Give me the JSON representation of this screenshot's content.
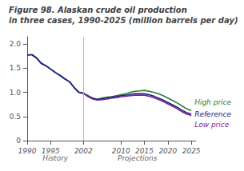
{
  "chart_data": {
    "type": "line",
    "title": "Figure 98. Alaskan crude oil production",
    "subtitle": "in three cases, 1990-2025 (million barrels per day)",
    "xlim": [
      1990,
      2026
    ],
    "xticks": [
      1990,
      1995,
      2002,
      2010,
      2015,
      2020,
      2025
    ],
    "ylim": [
      0,
      2.15
    ],
    "yticks": [
      0,
      0.5,
      {
        "value": 1.0,
        "label": "1.0"
      },
      1.5,
      {
        "value": 2.0,
        "label": "2.0"
      }
    ],
    "grid": false,
    "vlines": [
      2002
    ],
    "annotations": [
      {
        "text": "History",
        "x": 1996,
        "y": 0
      },
      {
        "text": "Projections",
        "x": 2013.5,
        "y": 0
      }
    ],
    "series": [
      {
        "color": "#1a237e",
        "x": [
          1990,
          1991,
          1992,
          1993,
          1994,
          1995,
          1996,
          1997,
          1998,
          1999,
          2000,
          2001,
          2002
        ],
        "values": [
          1.77,
          1.78,
          1.71,
          1.6,
          1.55,
          1.48,
          1.41,
          1.35,
          1.28,
          1.22,
          1.1,
          1.0,
          0.98
        ]
      },
      {
        "name": "High price",
        "color": "#2e7d32",
        "x": [
          2002,
          2003,
          2004,
          2005,
          2006,
          2007,
          2008,
          2009,
          2010,
          2011,
          2012,
          2013,
          2014,
          2015,
          2016,
          2017,
          2018,
          2019,
          2020,
          2021,
          2022,
          2023,
          2024,
          2025
        ],
        "values": [
          0.98,
          0.93,
          0.88,
          0.86,
          0.88,
          0.9,
          0.91,
          0.93,
          0.95,
          0.97,
          1.0,
          1.02,
          1.03,
          1.04,
          1.02,
          1.0,
          0.97,
          0.93,
          0.88,
          0.83,
          0.78,
          0.72,
          0.66,
          0.62
        ]
      },
      {
        "name": "Reference",
        "color": "#1a237e",
        "x": [
          2002,
          2003,
          2004,
          2005,
          2006,
          2007,
          2008,
          2009,
          2010,
          2011,
          2012,
          2013,
          2014,
          2015,
          2016,
          2017,
          2018,
          2019,
          2020,
          2021,
          2022,
          2023,
          2024,
          2025
        ],
        "values": [
          0.98,
          0.92,
          0.87,
          0.85,
          0.87,
          0.88,
          0.9,
          0.91,
          0.93,
          0.94,
          0.96,
          0.97,
          0.97,
          0.97,
          0.95,
          0.92,
          0.88,
          0.84,
          0.79,
          0.74,
          0.69,
          0.63,
          0.58,
          0.55
        ]
      },
      {
        "name": "Low price",
        "color": "#7b1fa2",
        "x": [
          2002,
          2003,
          2004,
          2005,
          2006,
          2007,
          2008,
          2009,
          2010,
          2011,
          2012,
          2013,
          2014,
          2015,
          2016,
          2017,
          2018,
          2019,
          2020,
          2021,
          2022,
          2023,
          2024,
          2025
        ],
        "values": [
          0.98,
          0.91,
          0.86,
          0.84,
          0.85,
          0.86,
          0.88,
          0.89,
          0.91,
          0.92,
          0.93,
          0.94,
          0.94,
          0.94,
          0.92,
          0.89,
          0.85,
          0.81,
          0.76,
          0.71,
          0.66,
          0.6,
          0.55,
          0.52
        ]
      }
    ]
  }
}
